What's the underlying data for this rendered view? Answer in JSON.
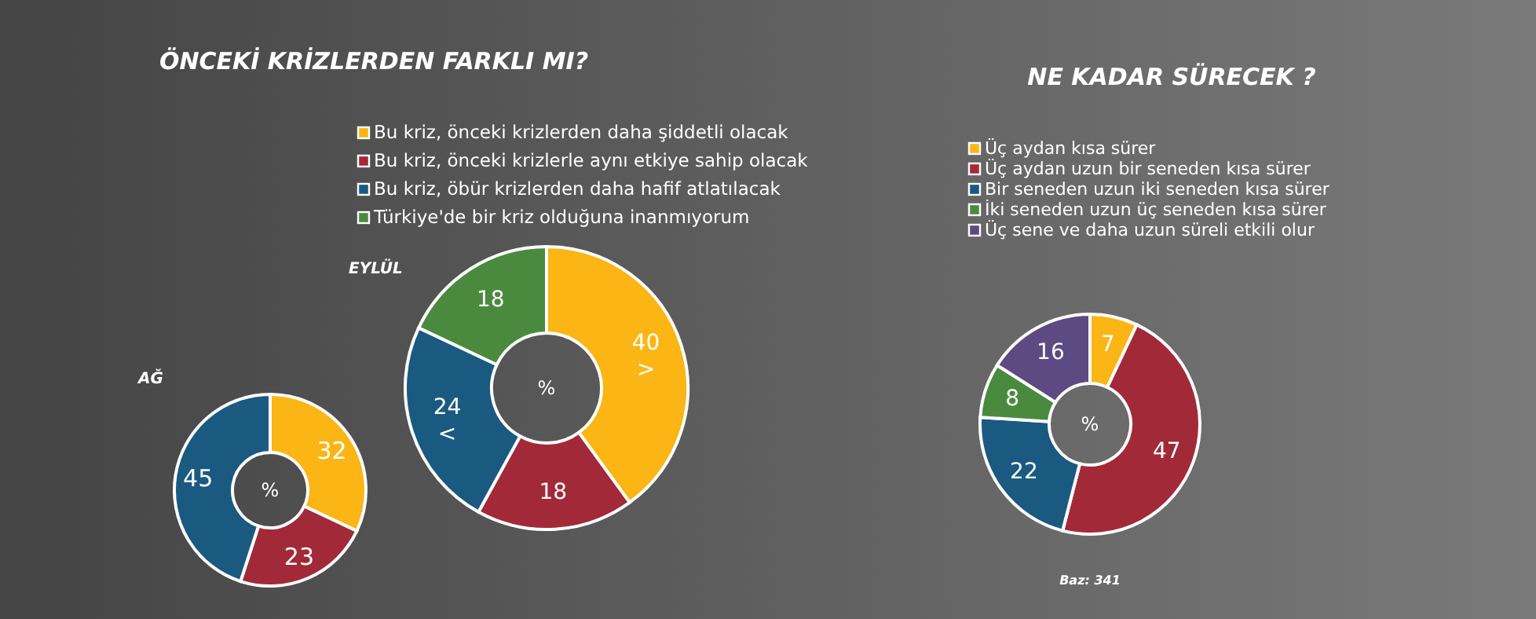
{
  "chart_data": [
    {
      "type": "donut",
      "title": "ÖNCEKİ KRİZLERDEN FARKLI MI?",
      "subtitle": "EYLÜL",
      "categories": [
        "Bu kriz, önceki krizlerden daha şiddetli olacak",
        "Bu kriz, önceki krizlerle aynı etkiye sahip olacak",
        "Bu kriz, öbür krizlerden daha hafif atlatılacak",
        "Türkiye'de bir kriz olduğuna inanmıyorum"
      ],
      "values": [
        40,
        18,
        24,
        18
      ],
      "value_labels": [
        "40\n>",
        "18",
        "24\n<",
        "18"
      ],
      "colors": [
        "#fbb615",
        "#a22a38",
        "#1b5a80",
        "#4a8a3f"
      ],
      "legend": "top",
      "annotations": [
        "%"
      ]
    },
    {
      "type": "donut",
      "subtitle": "AĞ",
      "categories": [
        null,
        null,
        null
      ],
      "values": [
        32,
        23,
        45
      ],
      "colors": [
        "#fbb615",
        "#a22a38",
        "#1b5a80"
      ],
      "data_labels": true,
      "annotations": [
        "%"
      ]
    },
    {
      "type": "donut",
      "title": "NE KADAR SÜRECEK ?",
      "categories": [
        "Üç aydan kısa sürer",
        "Üç aydan uzun bir seneden kısa sürer",
        "Bir seneden uzun iki seneden kısa sürer",
        "İki seneden uzun üç seneden kısa sürer",
        "Üç sene ve daha uzun süreli etkili olur"
      ],
      "values": [
        7,
        47,
        22,
        8,
        16
      ],
      "colors": [
        "#fbb615",
        "#a22a38",
        "#1b5a80",
        "#4a8a3f",
        "#5e4a82"
      ],
      "data_labels": true,
      "legend": "top",
      "annotations": [
        "%",
        "Baz: 341"
      ]
    }
  ]
}
